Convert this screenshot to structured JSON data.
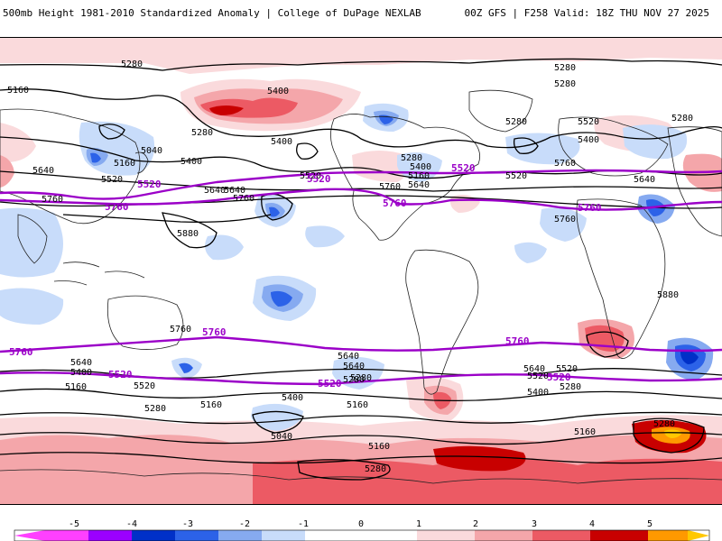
{
  "header": {
    "left": "500mb Height 1981-2010 Standardized Anomaly | College of DuPage NEXLAB",
    "right": "00Z GFS | F258 Valid: 18Z THU NOV 27 2025"
  },
  "colorbar": {
    "ticks": [
      "-5",
      "-4",
      "-3",
      "-2",
      "-1",
      "0",
      "1",
      "2",
      "3",
      "4",
      "5"
    ],
    "colors": [
      "#ff40ff",
      "#9b00ff",
      "#0030c8",
      "#2c62e8",
      "#86aaf0",
      "#c8dcfa",
      "#ffffff",
      "#ffffff",
      "#fadadc",
      "#f4a6aa",
      "#ec5a64",
      "#c80000",
      "#ff9900",
      "#ffc800"
    ]
  },
  "contours": {
    "black_labels": [
      "5280",
      "5280",
      "5160",
      "5400",
      "5280",
      "5280",
      "5160",
      "5040",
      "5280",
      "5400",
      "5280",
      "5400",
      "5640",
      "5520",
      "5520",
      "5640",
      "5400",
      "5280",
      "5520",
      "5160",
      "5400",
      "5760",
      "5640",
      "5640",
      "5760",
      "5520",
      "5640",
      "5880",
      "5760",
      "5880",
      "5760",
      "5760",
      "5760",
      "5640",
      "5640",
      "5640",
      "5520",
      "5640",
      "5400",
      "5520",
      "5520",
      "5280",
      "5280",
      "5400",
      "5400",
      "5160",
      "5280",
      "5160",
      "5160",
      "5280",
      "5040",
      "5160",
      "5160",
      "5280",
      "5280"
    ],
    "purple_labels": [
      "5520",
      "5520",
      "5760",
      "5520",
      "5760",
      "5760",
      "5760",
      "5760",
      "5760",
      "5520",
      "5520",
      "5520"
    ]
  },
  "colors": {
    "anom_pos_light": "#fadadc",
    "anom_pos_mid": "#f4a6aa",
    "anom_pos_strong": "#ec5a64",
    "anom_pos_max": "#c80000",
    "anom_neg_light": "#c8dcfa",
    "anom_neg_mid": "#86aaf0",
    "anom_neg_strong": "#2c62e8",
    "contour_black": "#000000",
    "contour_purple": "#9b00c8"
  }
}
